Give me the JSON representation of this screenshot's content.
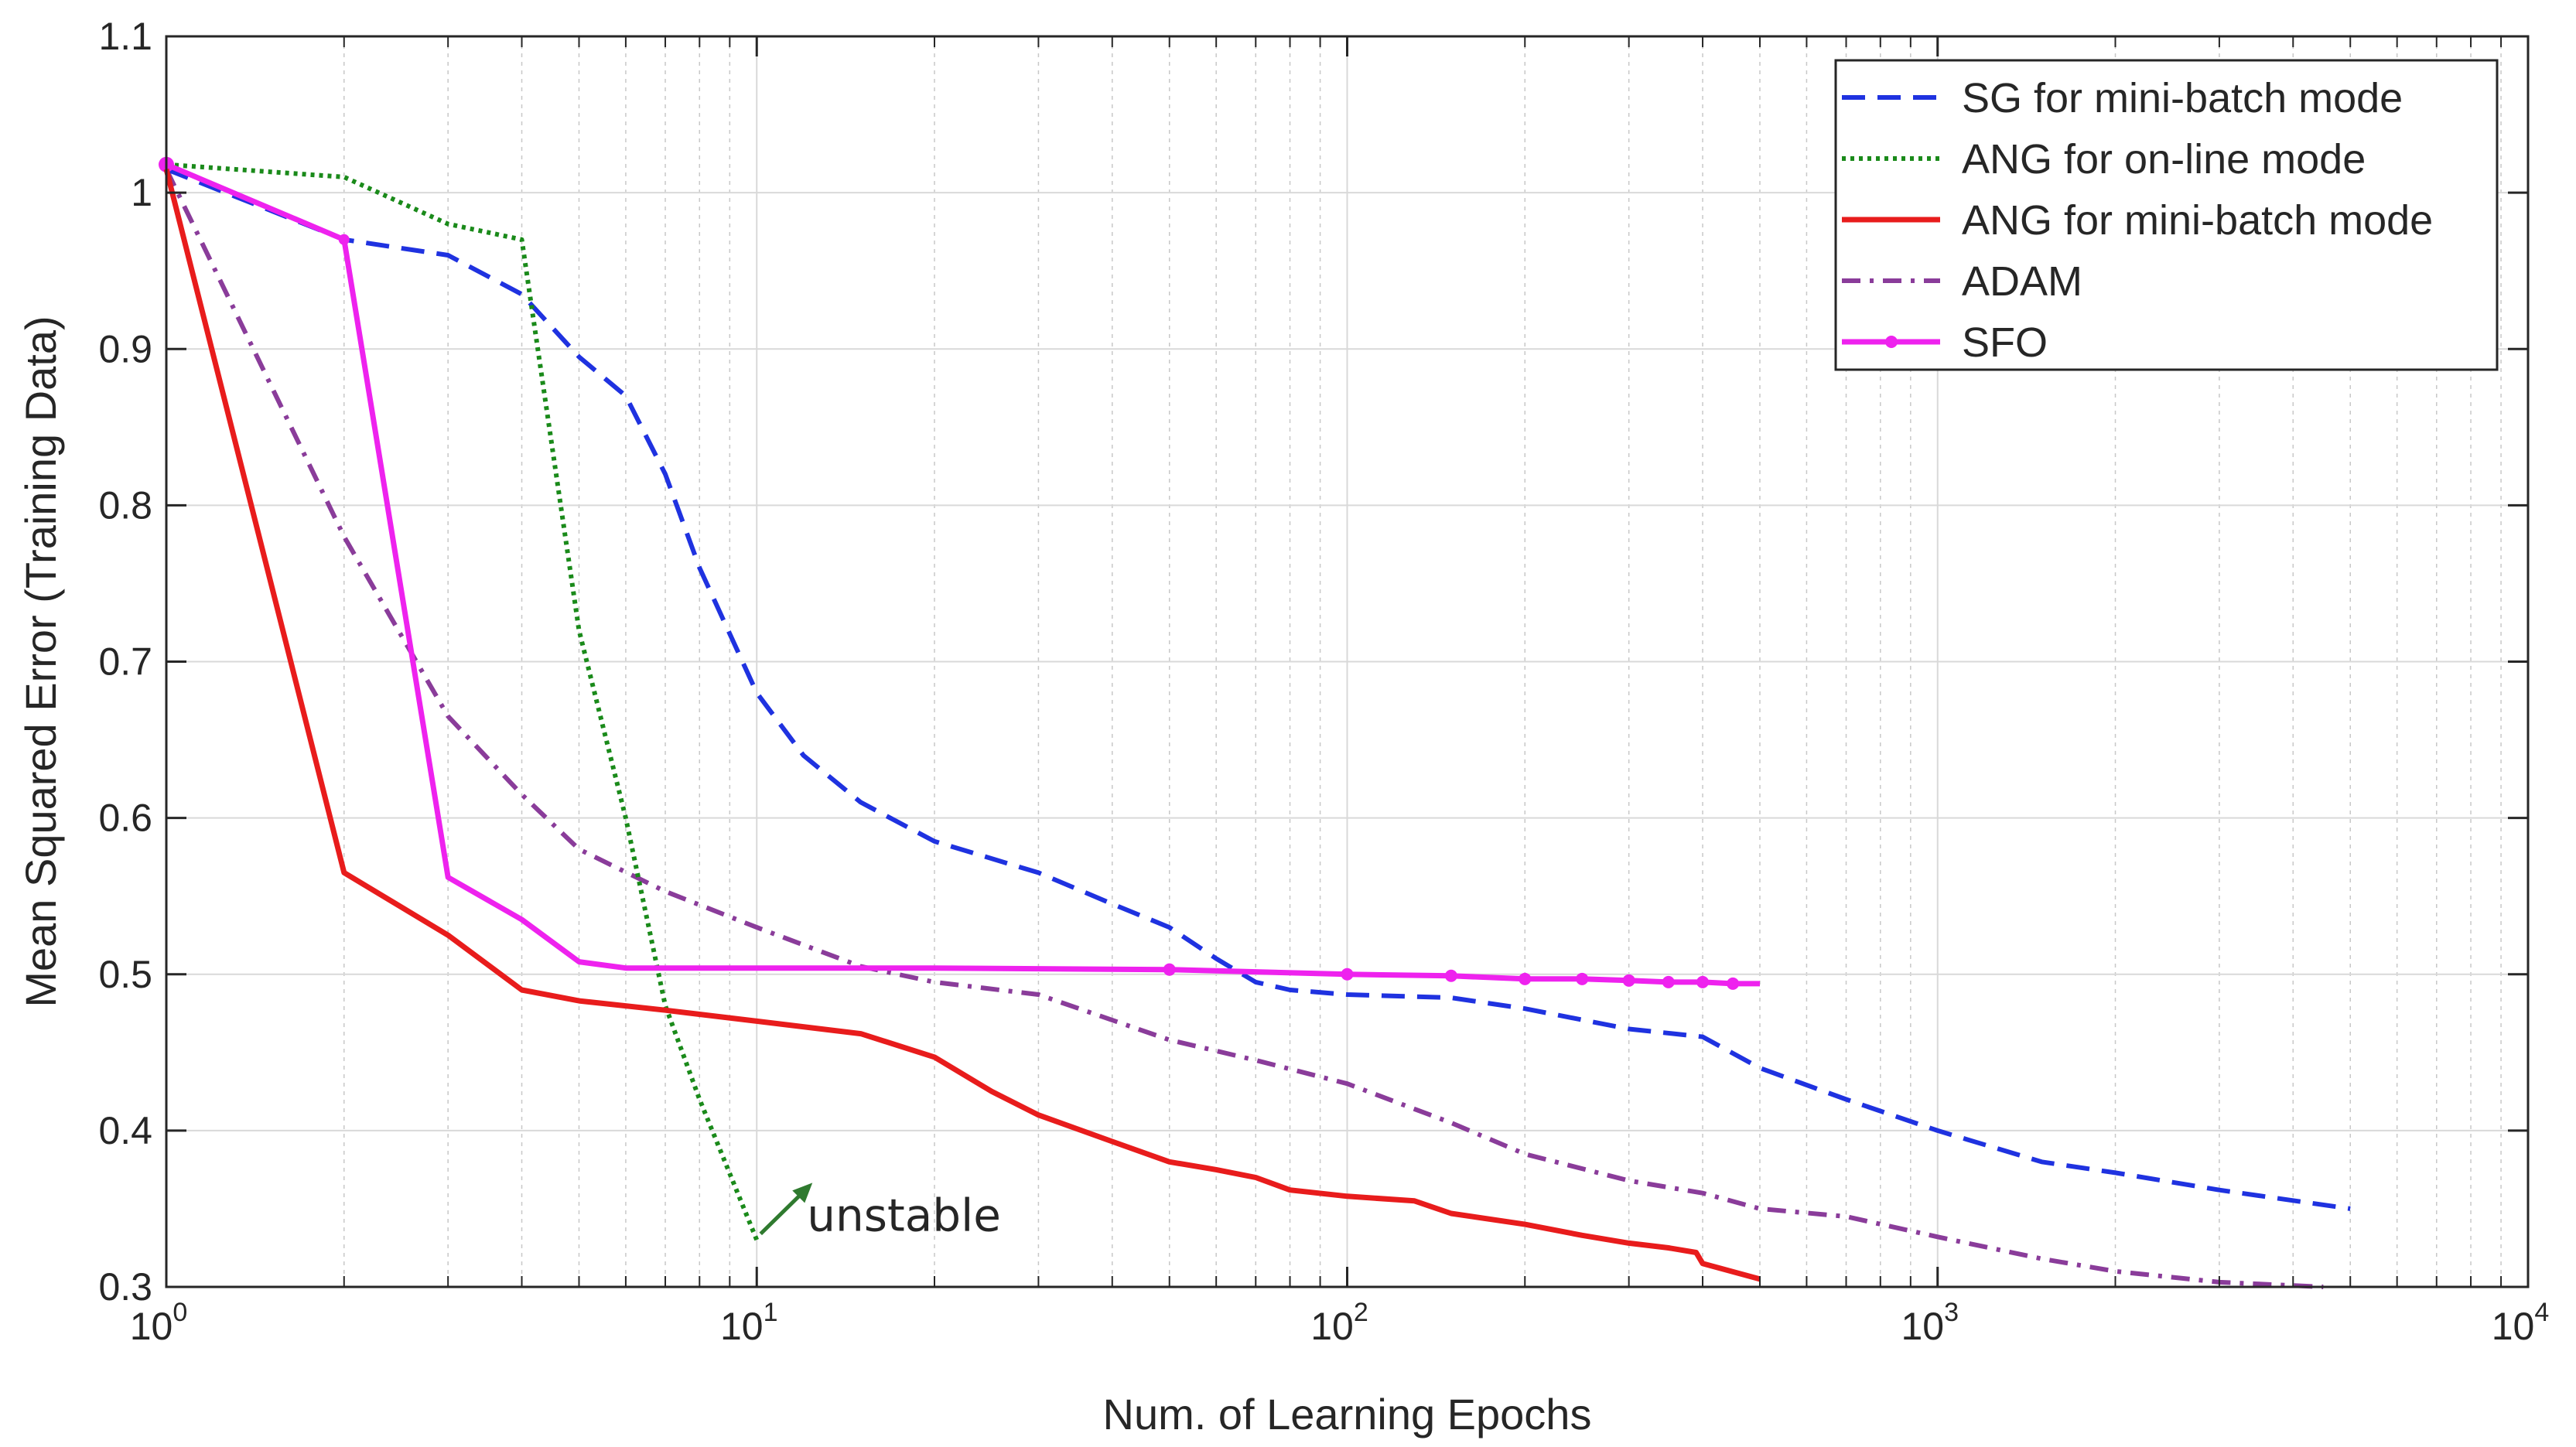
{
  "chart_data": {
    "type": "line",
    "title": "",
    "xlabel": "Num. of Learning Epochs",
    "ylabel": "Mean Squared Error (Training Data)",
    "xscale": "log",
    "xlim": [
      1,
      10000
    ],
    "ylim": [
      0.3,
      1.1
    ],
    "grid": true,
    "legend_position": "top-right",
    "x_ticks": [
      {
        "base": "10",
        "exp": "0"
      },
      {
        "base": "10",
        "exp": "1"
      },
      {
        "base": "10",
        "exp": "2"
      },
      {
        "base": "10",
        "exp": "3"
      },
      {
        "base": "10",
        "exp": "4"
      }
    ],
    "y_ticks": [
      "0.3",
      "0.4",
      "0.5",
      "0.6",
      "0.7",
      "0.8",
      "0.9",
      "1",
      "1.1"
    ],
    "series": [
      {
        "name": "SG for mini-batch mode",
        "color": "#1f32e0",
        "style": "dashed",
        "x": [
          1,
          2,
          3,
          4,
          5,
          6,
          7,
          8,
          10,
          12,
          15,
          20,
          30,
          40,
          50,
          60,
          70,
          80,
          100,
          150,
          200,
          300,
          400,
          500,
          700,
          1000,
          1500,
          2000,
          3000,
          5000
        ],
        "y": [
          1.015,
          0.97,
          0.96,
          0.935,
          0.895,
          0.87,
          0.82,
          0.76,
          0.68,
          0.64,
          0.61,
          0.585,
          0.565,
          0.545,
          0.53,
          0.51,
          0.495,
          0.49,
          0.487,
          0.485,
          0.478,
          0.465,
          0.46,
          0.44,
          0.42,
          0.4,
          0.38,
          0.373,
          0.362,
          0.35
        ]
      },
      {
        "name": "ANG for on-line mode",
        "color": "#1a8a1a",
        "style": "dotted",
        "x": [
          1,
          2,
          3,
          4,
          5,
          6,
          7,
          8,
          10
        ],
        "y": [
          1.018,
          1.01,
          0.98,
          0.97,
          0.72,
          0.6,
          0.48,
          0.42,
          0.33
        ]
      },
      {
        "name": "ANG for mini-batch mode",
        "color": "#e81c1c",
        "style": "solid",
        "x": [
          1,
          2,
          3,
          4,
          5,
          7,
          10,
          15,
          20,
          25,
          30,
          40,
          50,
          60,
          70,
          80,
          100,
          130,
          150,
          200,
          250,
          300,
          350,
          390,
          400,
          500
        ],
        "y": [
          1.015,
          0.565,
          0.525,
          0.49,
          0.483,
          0.477,
          0.47,
          0.462,
          0.447,
          0.425,
          0.41,
          0.393,
          0.38,
          0.375,
          0.37,
          0.362,
          0.358,
          0.355,
          0.347,
          0.34,
          0.333,
          0.328,
          0.325,
          0.322,
          0.315,
          0.305
        ]
      },
      {
        "name": "ADAM",
        "color": "#8a3c9a",
        "style": "dashdot",
        "x": [
          1,
          2,
          3,
          4,
          5,
          7,
          10,
          15,
          20,
          30,
          50,
          70,
          100,
          150,
          200,
          300,
          400,
          500,
          700,
          1000,
          1500,
          2000,
          3000,
          4500
        ],
        "y": [
          1.015,
          0.78,
          0.665,
          0.615,
          0.58,
          0.553,
          0.53,
          0.505,
          0.495,
          0.487,
          0.458,
          0.445,
          0.43,
          0.405,
          0.385,
          0.368,
          0.36,
          0.35,
          0.345,
          0.332,
          0.318,
          0.31,
          0.303,
          0.3
        ]
      },
      {
        "name": "SFO",
        "color": "#ee22ee",
        "style": "solid-marker",
        "x": [
          1,
          2,
          3,
          4,
          5,
          6,
          10,
          20,
          50,
          100,
          150,
          200,
          250,
          300,
          350,
          400,
          450,
          500
        ],
        "y": [
          1.018,
          0.97,
          0.562,
          0.535,
          0.508,
          0.504,
          0.504,
          0.504,
          0.503,
          0.5,
          0.499,
          0.497,
          0.497,
          0.496,
          0.495,
          0.495,
          0.494,
          0.494
        ],
        "marker_x": [
          50,
          100,
          150,
          200,
          250,
          300,
          350,
          400,
          450
        ]
      }
    ],
    "annotations": [
      {
        "text": "unstable",
        "x": 10,
        "y": 0.33
      }
    ]
  }
}
